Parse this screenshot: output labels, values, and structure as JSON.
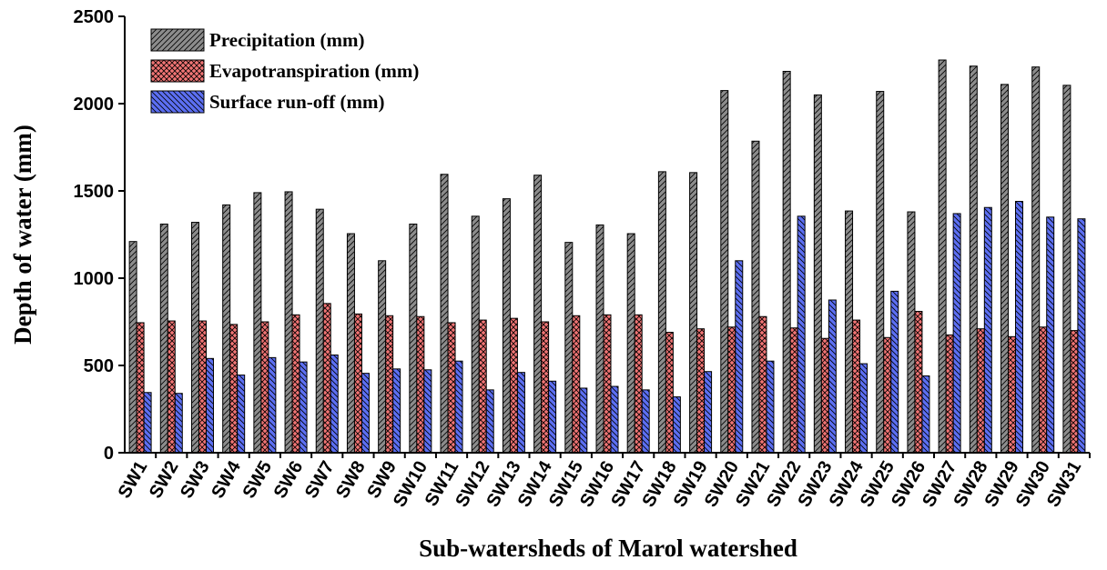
{
  "chart_data": {
    "type": "bar",
    "x_label": "Sub-watersheds of Marol watershed",
    "y_label": "Depth of water (mm)",
    "categories": [
      "SW1",
      "SW2",
      "SW3",
      "SW4",
      "SW5",
      "SW6",
      "SW7",
      "SW8",
      "SW9",
      "SW10",
      "SW11",
      "SW12",
      "SW13",
      "SW14",
      "SW15",
      "SW16",
      "SW17",
      "SW18",
      "SW19",
      "SW20",
      "SW21",
      "SW22",
      "SW23",
      "SW24",
      "SW25",
      "SW26",
      "SW27",
      "SW28",
      "SW29",
      "SW30",
      "SW31"
    ],
    "series": [
      {
        "name": "Precipitation (mm)",
        "color": "#8c8c8c",
        "values": [
          1210,
          1310,
          1320,
          1420,
          1490,
          1495,
          1395,
          1255,
          1100,
          1310,
          1595,
          1355,
          1455,
          1590,
          1205,
          1305,
          1255,
          1610,
          1605,
          2075,
          1785,
          2185,
          2050,
          1385,
          2070,
          1380,
          2250,
          2215,
          2110,
          2210,
          2105
        ]
      },
      {
        "name": "Evapotranspiration (mm)",
        "color": "#f07474",
        "values": [
          745,
          755,
          755,
          735,
          750,
          790,
          855,
          795,
          785,
          780,
          745,
          760,
          770,
          750,
          785,
          790,
          790,
          690,
          710,
          720,
          780,
          715,
          655,
          760,
          660,
          810,
          675,
          710,
          665,
          720,
          700
        ]
      },
      {
        "name": "Surface run-off (mm)",
        "color": "#5c6ff2",
        "values": [
          345,
          340,
          540,
          445,
          545,
          520,
          560,
          455,
          480,
          475,
          525,
          360,
          460,
          410,
          370,
          380,
          360,
          320,
          465,
          1100,
          525,
          1355,
          875,
          510,
          925,
          440,
          1370,
          1405,
          1440,
          1350,
          1340
        ]
      }
    ],
    "ylim": [
      0,
      2500
    ],
    "yticks": [
      0,
      500,
      1000,
      1500,
      2000,
      2500
    ],
    "legend": "upper-left"
  }
}
